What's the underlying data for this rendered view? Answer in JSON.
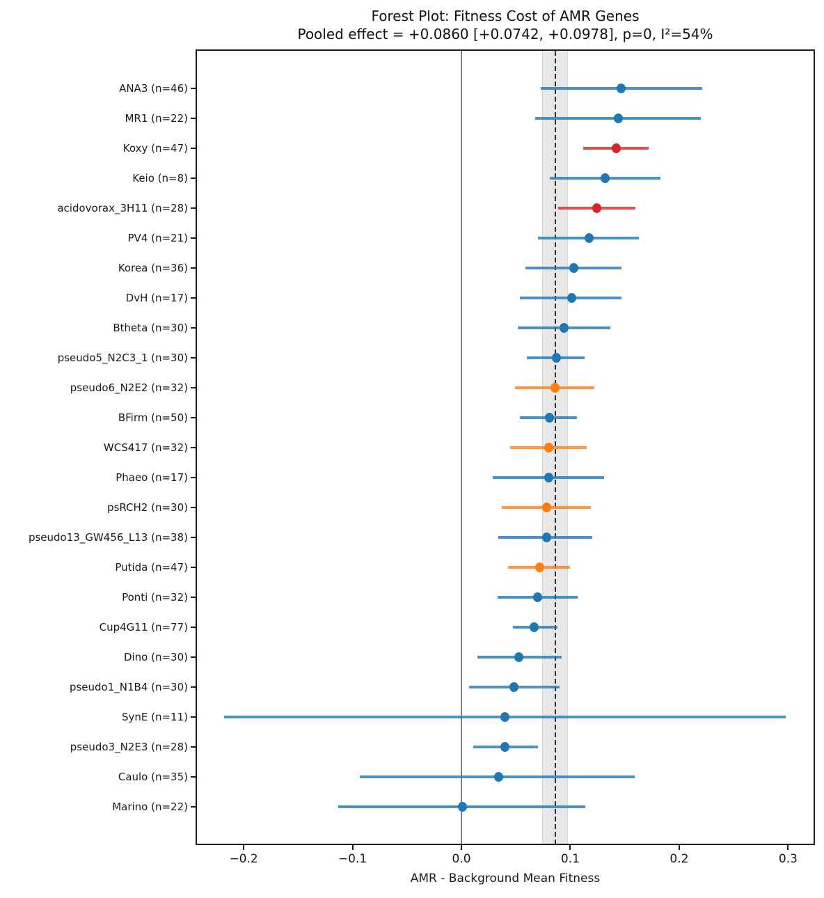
{
  "title": {
    "line1": "Forest Plot: Fitness Cost of AMR Genes",
    "line2": "Pooled effect = +0.0860 [+0.0742, +0.0978], p=0, I²=54%"
  },
  "colors": {
    "blue": "#1f77b4",
    "orange": "#ff7f0e",
    "red": "#d62728",
    "band": "#e8e8e8",
    "pooled_dash": "#2b2b2b",
    "zero_line": "#7f7f7f",
    "frame": "#1a1a1a"
  },
  "chart_data": {
    "type": "scatter",
    "subtype": "forest_plot",
    "title": "Forest Plot: Fitness Cost of AMR Genes",
    "subtitle": "Pooled effect = +0.0860 [+0.0742, +0.0978], p=0, I²=54%",
    "xlabel": "AMR - Background Mean Fitness",
    "ylabel": "",
    "xlim": [
      -0.243,
      0.323
    ],
    "grid": false,
    "x_ticks": [
      -0.2,
      -0.1,
      0.0,
      0.1,
      0.2,
      0.3
    ],
    "x_tick_labels": [
      "−0.2",
      "−0.1",
      "0.0",
      "0.1",
      "0.2",
      "0.3"
    ],
    "pooled": {
      "effect": 0.086,
      "ci_low": 0.0742,
      "ci_high": 0.0978,
      "p": "0",
      "i_squared": "54%",
      "zero_reference": 0.0
    },
    "studies": [
      {
        "label": "ANA3 (n=46)",
        "name": "ANA3",
        "n": 46,
        "effect": 0.147,
        "ci_low": 0.073,
        "ci_high": 0.221,
        "color": "blue"
      },
      {
        "label": "MR1 (n=22)",
        "name": "MR1",
        "n": 22,
        "effect": 0.144,
        "ci_low": 0.068,
        "ci_high": 0.22,
        "color": "blue"
      },
      {
        "label": "Koxy (n=47)",
        "name": "Koxy",
        "n": 47,
        "effect": 0.142,
        "ci_low": 0.112,
        "ci_high": 0.172,
        "color": "red"
      },
      {
        "label": "Keio (n=8)",
        "name": "Keio",
        "n": 8,
        "effect": 0.132,
        "ci_low": 0.081,
        "ci_high": 0.183,
        "color": "blue"
      },
      {
        "label": "acidovorax_3H11 (n=28)",
        "name": "acidovorax_3H11",
        "n": 28,
        "effect": 0.124,
        "ci_low": 0.089,
        "ci_high": 0.16,
        "color": "red"
      },
      {
        "label": "PV4 (n=21)",
        "name": "PV4",
        "n": 21,
        "effect": 0.117,
        "ci_low": 0.07,
        "ci_high": 0.163,
        "color": "blue"
      },
      {
        "label": "Korea (n=36)",
        "name": "Korea",
        "n": 36,
        "effect": 0.103,
        "ci_low": 0.059,
        "ci_high": 0.147,
        "color": "blue"
      },
      {
        "label": "DvH (n=17)",
        "name": "DvH",
        "n": 17,
        "effect": 0.101,
        "ci_low": 0.054,
        "ci_high": 0.147,
        "color": "blue"
      },
      {
        "label": "Btheta (n=30)",
        "name": "Btheta",
        "n": 30,
        "effect": 0.094,
        "ci_low": 0.052,
        "ci_high": 0.137,
        "color": "blue"
      },
      {
        "label": "pseudo5_N2C3_1 (n=30)",
        "name": "pseudo5_N2C3_1",
        "n": 30,
        "effect": 0.087,
        "ci_low": 0.06,
        "ci_high": 0.113,
        "color": "blue"
      },
      {
        "label": "pseudo6_N2E2 (n=32)",
        "name": "pseudo6_N2E2",
        "n": 32,
        "effect": 0.086,
        "ci_low": 0.049,
        "ci_high": 0.122,
        "color": "orange"
      },
      {
        "label": "BFirm (n=50)",
        "name": "BFirm",
        "n": 50,
        "effect": 0.081,
        "ci_low": 0.054,
        "ci_high": 0.106,
        "color": "blue"
      },
      {
        "label": "WCS417 (n=32)",
        "name": "WCS417",
        "n": 32,
        "effect": 0.08,
        "ci_low": 0.045,
        "ci_high": 0.115,
        "color": "orange"
      },
      {
        "label": "Phaeo (n=17)",
        "name": "Phaeo",
        "n": 17,
        "effect": 0.08,
        "ci_low": 0.029,
        "ci_high": 0.131,
        "color": "blue"
      },
      {
        "label": "psRCH2 (n=30)",
        "name": "psRCH2",
        "n": 30,
        "effect": 0.078,
        "ci_low": 0.037,
        "ci_high": 0.119,
        "color": "orange"
      },
      {
        "label": "pseudo13_GW456_L13 (n=38)",
        "name": "pseudo13_GW456_L13",
        "n": 38,
        "effect": 0.078,
        "ci_low": 0.034,
        "ci_high": 0.12,
        "color": "blue"
      },
      {
        "label": "Putida (n=47)",
        "name": "Putida",
        "n": 47,
        "effect": 0.072,
        "ci_low": 0.043,
        "ci_high": 0.1,
        "color": "orange"
      },
      {
        "label": "Ponti (n=32)",
        "name": "Ponti",
        "n": 32,
        "effect": 0.07,
        "ci_low": 0.033,
        "ci_high": 0.107,
        "color": "blue"
      },
      {
        "label": "Cup4G11 (n=77)",
        "name": "Cup4G11",
        "n": 77,
        "effect": 0.067,
        "ci_low": 0.047,
        "ci_high": 0.088,
        "color": "blue"
      },
      {
        "label": "Dino (n=30)",
        "name": "Dino",
        "n": 30,
        "effect": 0.053,
        "ci_low": 0.015,
        "ci_high": 0.092,
        "color": "blue"
      },
      {
        "label": "pseudo1_N1B4 (n=30)",
        "name": "pseudo1_N1B4",
        "n": 30,
        "effect": 0.048,
        "ci_low": 0.007,
        "ci_high": 0.09,
        "color": "blue"
      },
      {
        "label": "SynE (n=11)",
        "name": "SynE",
        "n": 11,
        "effect": 0.04,
        "ci_low": -0.218,
        "ci_high": 0.298,
        "color": "blue"
      },
      {
        "label": "pseudo3_N2E3 (n=28)",
        "name": "pseudo3_N2E3",
        "n": 28,
        "effect": 0.04,
        "ci_low": 0.011,
        "ci_high": 0.07,
        "color": "blue"
      },
      {
        "label": "Caulo (n=35)",
        "name": "Caulo",
        "n": 35,
        "effect": 0.034,
        "ci_low": -0.093,
        "ci_high": 0.159,
        "color": "blue"
      },
      {
        "label": "Marino (n=22)",
        "name": "Marino",
        "n": 22,
        "effect": 0.001,
        "ci_low": -0.113,
        "ci_high": 0.114,
        "color": "blue"
      }
    ]
  }
}
